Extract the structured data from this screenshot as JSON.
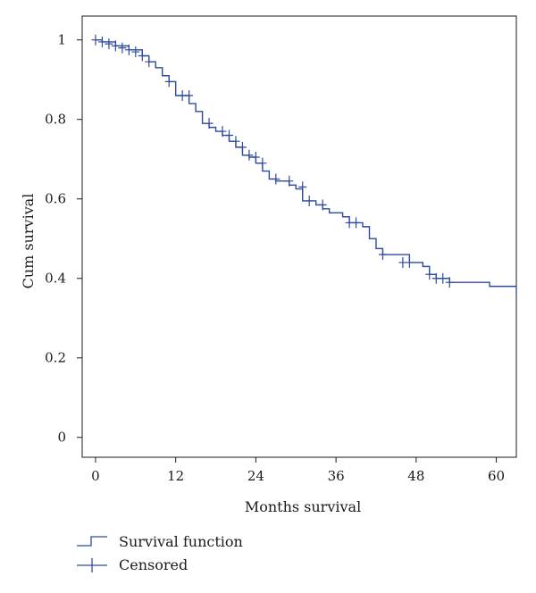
{
  "chart_data": {
    "type": "line",
    "subtype": "kaplan-meier-step",
    "title": "",
    "xlabel": "Months survival",
    "ylabel": "Cum survival",
    "xlim": [
      -2,
      63
    ],
    "ylim": [
      -0.05,
      1.06
    ],
    "xticks": [
      0,
      12,
      24,
      36,
      48,
      60
    ],
    "yticks": [
      0,
      0.2,
      0.4,
      0.6,
      0.8,
      1
    ],
    "xtick_labels": [
      "0",
      "12",
      "24",
      "36",
      "48",
      "60"
    ],
    "ytick_labels": [
      "0",
      "0.2",
      "0.4",
      "0.6",
      "0.8",
      "1"
    ],
    "grid": false,
    "line_color": "#2e4a9e",
    "series": [
      {
        "name": "Survival function",
        "x": [
          0,
          1,
          3,
          5,
          7,
          8,
          9,
          10,
          11,
          12,
          14,
          15,
          16,
          17,
          18,
          19,
          20,
          21,
          22,
          23,
          24,
          25,
          26,
          27,
          29,
          30,
          31,
          32,
          33,
          34,
          35,
          37,
          38,
          40,
          41,
          42,
          43,
          47,
          49,
          50,
          51,
          53,
          59,
          63
        ],
        "y": [
          1.0,
          0.995,
          0.985,
          0.975,
          0.96,
          0.945,
          0.93,
          0.91,
          0.895,
          0.86,
          0.84,
          0.82,
          0.79,
          0.78,
          0.77,
          0.76,
          0.745,
          0.73,
          0.71,
          0.705,
          0.69,
          0.67,
          0.65,
          0.645,
          0.635,
          0.625,
          0.595,
          0.595,
          0.585,
          0.575,
          0.565,
          0.555,
          0.54,
          0.53,
          0.5,
          0.475,
          0.46,
          0.44,
          0.43,
          0.41,
          0.4,
          0.39,
          0.38,
          0.36
        ]
      }
    ],
    "censored": {
      "name": "Censored",
      "x": [
        0,
        1,
        2,
        3,
        4,
        5,
        6,
        7,
        8,
        11,
        13,
        14,
        17,
        19,
        20,
        21,
        22,
        23,
        24,
        25,
        27,
        29,
        31,
        32,
        34,
        38,
        39,
        43,
        46,
        47,
        50,
        51,
        52,
        53
      ],
      "y": [
        1.0,
        0.995,
        0.99,
        0.985,
        0.98,
        0.975,
        0.97,
        0.96,
        0.945,
        0.895,
        0.86,
        0.86,
        0.79,
        0.77,
        0.76,
        0.745,
        0.73,
        0.71,
        0.705,
        0.69,
        0.65,
        0.645,
        0.63,
        0.595,
        0.585,
        0.54,
        0.54,
        0.46,
        0.44,
        0.44,
        0.41,
        0.4,
        0.4,
        0.39
      ]
    },
    "legend": {
      "position": "bottom-left",
      "entries": [
        {
          "label": "Survival function",
          "symbol": "step"
        },
        {
          "label": "Censored",
          "symbol": "plus"
        }
      ]
    }
  }
}
